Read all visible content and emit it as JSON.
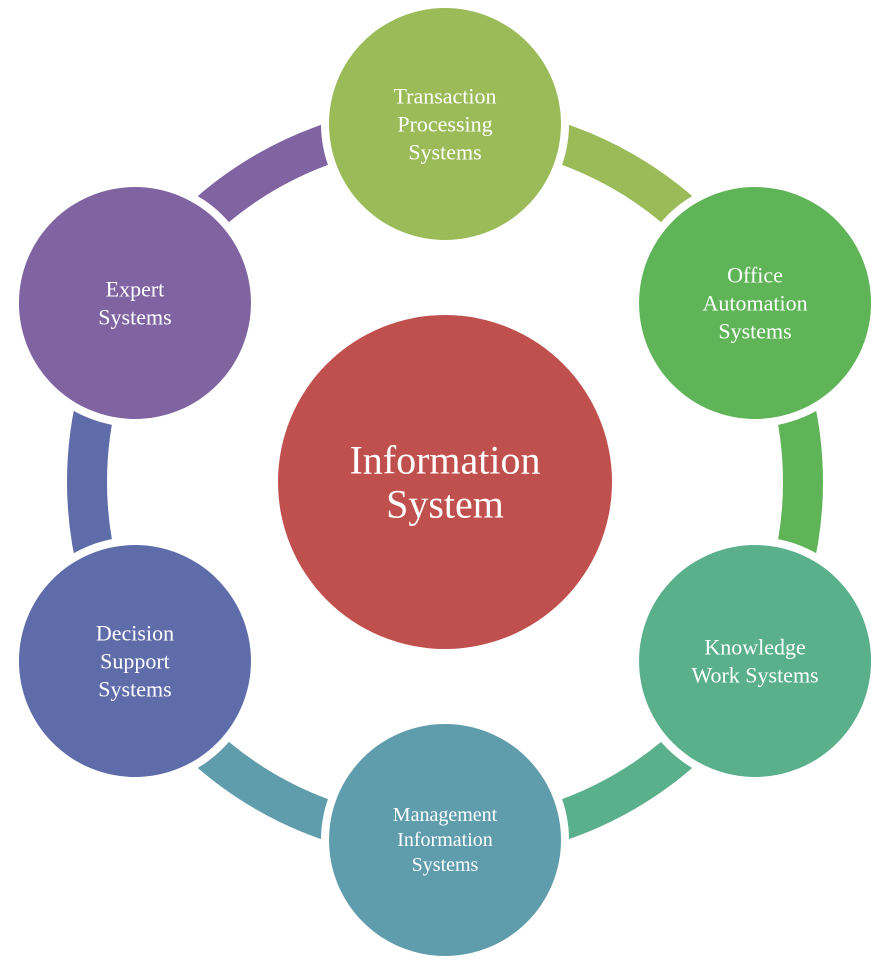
{
  "center": {
    "lines": [
      "Information",
      "System"
    ],
    "color": "#c0504d"
  },
  "nodes": [
    {
      "key": "tps",
      "lines": [
        "Transaction",
        "Processing",
        "Systems"
      ],
      "color": "#9bbb59"
    },
    {
      "key": "oas",
      "lines": [
        "Office",
        "Automation",
        "Systems"
      ],
      "color": "#5fb458"
    },
    {
      "key": "kws",
      "lines": [
        "Knowledge",
        "Work Systems"
      ],
      "color": "#5bb08c"
    },
    {
      "key": "mis",
      "lines": [
        "Management",
        "Information",
        "Systems"
      ],
      "color": "#5f9cac"
    },
    {
      "key": "dss",
      "lines": [
        "Decision",
        "Support",
        "Systems"
      ],
      "color": "#5f6caa"
    },
    {
      "key": "es",
      "lines": [
        "Expert",
        "Systems"
      ],
      "color": "#8064a2"
    }
  ]
}
